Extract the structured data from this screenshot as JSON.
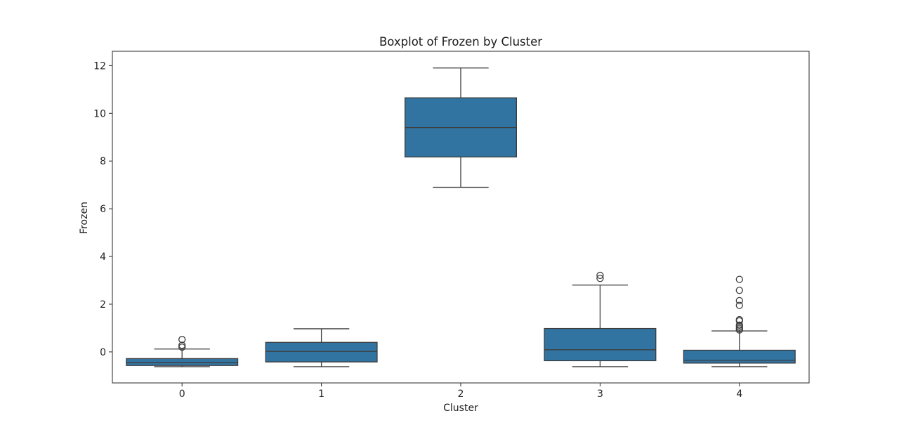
{
  "chart_data": {
    "type": "boxplot",
    "title": "Boxplot of Frozen by Cluster",
    "xlabel": "Cluster",
    "ylabel": "Frozen",
    "categories": [
      "0",
      "1",
      "2",
      "3",
      "4"
    ],
    "ylim": [
      -1.3,
      12.6
    ],
    "yticks": [
      0,
      2,
      4,
      6,
      8,
      10,
      12
    ],
    "grid": false,
    "box_color": "#3274a1",
    "line_color": "#3d3d3d",
    "boxes": [
      {
        "category": "0",
        "whisker_low": -0.62,
        "q1": -0.57,
        "median": -0.44,
        "q3": -0.28,
        "whisker_high": 0.12,
        "outliers": [
          0.2,
          0.28,
          0.52
        ]
      },
      {
        "category": "1",
        "whisker_low": -0.62,
        "q1": -0.42,
        "median": 0.02,
        "q3": 0.4,
        "whisker_high": 0.97,
        "outliers": []
      },
      {
        "category": "2",
        "whisker_low": 6.9,
        "q1": 8.17,
        "median": 9.4,
        "q3": 10.65,
        "whisker_high": 11.9,
        "outliers": []
      },
      {
        "category": "3",
        "whisker_low": -0.62,
        "q1": -0.37,
        "median": 0.09,
        "q3": 0.98,
        "whisker_high": 2.8,
        "outliers": [
          3.08,
          3.21
        ]
      },
      {
        "category": "4",
        "whisker_low": -0.62,
        "q1": -0.47,
        "median": -0.35,
        "q3": 0.07,
        "whisker_high": 0.88,
        "outliers": [
          0.92,
          0.98,
          1.05,
          1.12,
          1.3,
          1.35,
          1.95,
          2.15,
          2.58,
          3.04
        ]
      }
    ]
  }
}
